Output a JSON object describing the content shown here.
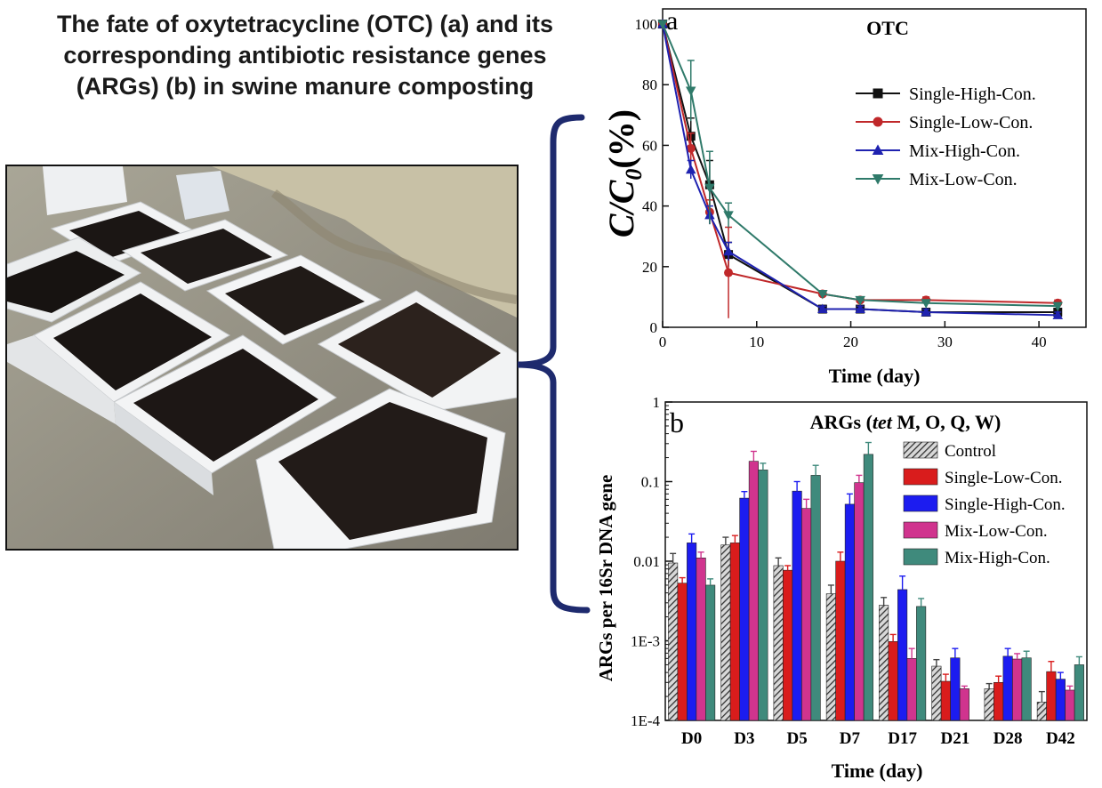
{
  "headline": {
    "line1": "The fate of oxytetracycline (OTC) (a) and its",
    "line2": "corresponding antibiotic resistance genes",
    "line3": "(ARGs) (b) in swine manure composting"
  },
  "colors": {
    "single_high": "#111111",
    "single_low": "#c0282a",
    "mix_high": "#1f22b0",
    "mix_low": "#2f7a6a",
    "control_hatch": "#444444",
    "bar_single_low": "#d91c1c",
    "bar_single_high": "#1c1cf0",
    "bar_mix_low": "#d0348e",
    "bar_mix_high": "#3f8a7c",
    "bracket": "#1e2a6e"
  },
  "photo": {
    "icon": "compost-boxes-photo"
  },
  "chart_data": [
    {
      "type": "line",
      "panel_letter": "a",
      "title": "OTC",
      "xlabel": "Time (day)",
      "ylabel_main": "C/C",
      "ylabel_sub": "0",
      "ylabel_unit": "(%)",
      "xlim": [
        0,
        45
      ],
      "ylim": [
        0,
        105
      ],
      "xticks": [
        0,
        10,
        20,
        30,
        40
      ],
      "yticks": [
        0,
        20,
        40,
        60,
        80,
        100
      ],
      "legend_position": "right",
      "series": [
        {
          "name": "Single-High-Con.",
          "marker": "square",
          "color": "#111111",
          "x": [
            0,
            3,
            5,
            7,
            17,
            21,
            28,
            42
          ],
          "y": [
            100,
            63,
            47,
            24,
            6,
            6,
            5,
            5
          ],
          "err": [
            0,
            6,
            8,
            4,
            1,
            1,
            1,
            1
          ]
        },
        {
          "name": "Single-Low-Con.",
          "marker": "circle",
          "color": "#c0282a",
          "x": [
            0,
            3,
            5,
            7,
            17,
            21,
            28,
            42
          ],
          "y": [
            100,
            59,
            38,
            18,
            11,
            9,
            9,
            8
          ],
          "err": [
            0,
            5,
            4,
            15,
            1,
            1,
            1,
            1
          ]
        },
        {
          "name": "Mix-High-Con.",
          "marker": "triangle-up",
          "color": "#1f22b0",
          "x": [
            0,
            3,
            5,
            7,
            17,
            21,
            28,
            42
          ],
          "y": [
            100,
            52,
            37,
            25,
            6,
            6,
            5,
            4
          ],
          "err": [
            0,
            3,
            3,
            3,
            1,
            1,
            1,
            1
          ]
        },
        {
          "name": "Mix-Low-Con.",
          "marker": "triangle-down",
          "color": "#2f7a6a",
          "x": [
            0,
            3,
            5,
            7,
            17,
            21,
            28,
            42
          ],
          "y": [
            100,
            78,
            46,
            37,
            11,
            9,
            8,
            7
          ],
          "err": [
            0,
            10,
            12,
            4,
            1,
            1,
            1,
            1
          ]
        }
      ]
    },
    {
      "type": "bar",
      "panel_letter": "b",
      "title_prefix": "ARGs (",
      "title_italic": "tet",
      "title_suffix": " M, O, Q, W)",
      "xlabel": "Time (day)",
      "ylabel": "ARGs per 16Sr DNA gene",
      "yscale": "log",
      "ylim": [
        0.0001,
        1
      ],
      "yticks": [
        0.0001,
        0.001,
        0.01,
        0.1,
        1
      ],
      "yticklabels": [
        "1E-4",
        "1E-3",
        "0.01",
        "0.1",
        "1"
      ],
      "categories": [
        "D0",
        "D3",
        "D5",
        "D7",
        "D17",
        "D21",
        "D28",
        "D42"
      ],
      "legend_position": "right",
      "series": [
        {
          "name": "Control",
          "color": "#444444",
          "hatch": true,
          "values": [
            0.0095,
            0.016,
            0.0088,
            0.0039,
            0.0028,
            0.00048,
            0.00025,
            0.00017
          ],
          "err_hi": [
            0.0125,
            0.02,
            0.011,
            0.005,
            0.0035,
            0.00058,
            0.00029,
            0.00023
          ]
        },
        {
          "name": "Single-Low-Con.",
          "color": "#d91c1c",
          "hatch": false,
          "values": [
            0.0053,
            0.017,
            0.0077,
            0.01,
            0.00098,
            0.00031,
            0.0003,
            0.00041
          ],
          "err_hi": [
            0.0062,
            0.021,
            0.0088,
            0.013,
            0.0012,
            0.00038,
            0.00036,
            0.00055
          ]
        },
        {
          "name": "Single-High-Con.",
          "color": "#1c1cf0",
          "hatch": false,
          "values": [
            0.017,
            0.062,
            0.076,
            0.052,
            0.0044,
            0.00061,
            0.00064,
            0.00033
          ],
          "err_hi": [
            0.022,
            0.075,
            0.1,
            0.07,
            0.0065,
            0.0008,
            0.0008,
            0.0004
          ]
        },
        {
          "name": "Mix-Low-Con.",
          "color": "#d0348e",
          "hatch": false,
          "values": [
            0.011,
            0.18,
            0.046,
            0.097,
            0.0006,
            0.00025,
            0.00059,
            0.00024
          ],
          "err_hi": [
            0.013,
            0.24,
            0.06,
            0.12,
            0.0008,
            0.00027,
            0.00069,
            0.00027
          ]
        },
        {
          "name": "Mix-High-Con.",
          "color": "#3f8a7c",
          "hatch": false,
          "values": [
            0.005,
            0.14,
            0.12,
            0.22,
            0.0027,
            null,
            0.00061,
            0.0005
          ],
          "err_hi": [
            0.006,
            0.17,
            0.16,
            0.31,
            0.0034,
            null,
            0.00074,
            0.00063
          ]
        }
      ]
    }
  ]
}
